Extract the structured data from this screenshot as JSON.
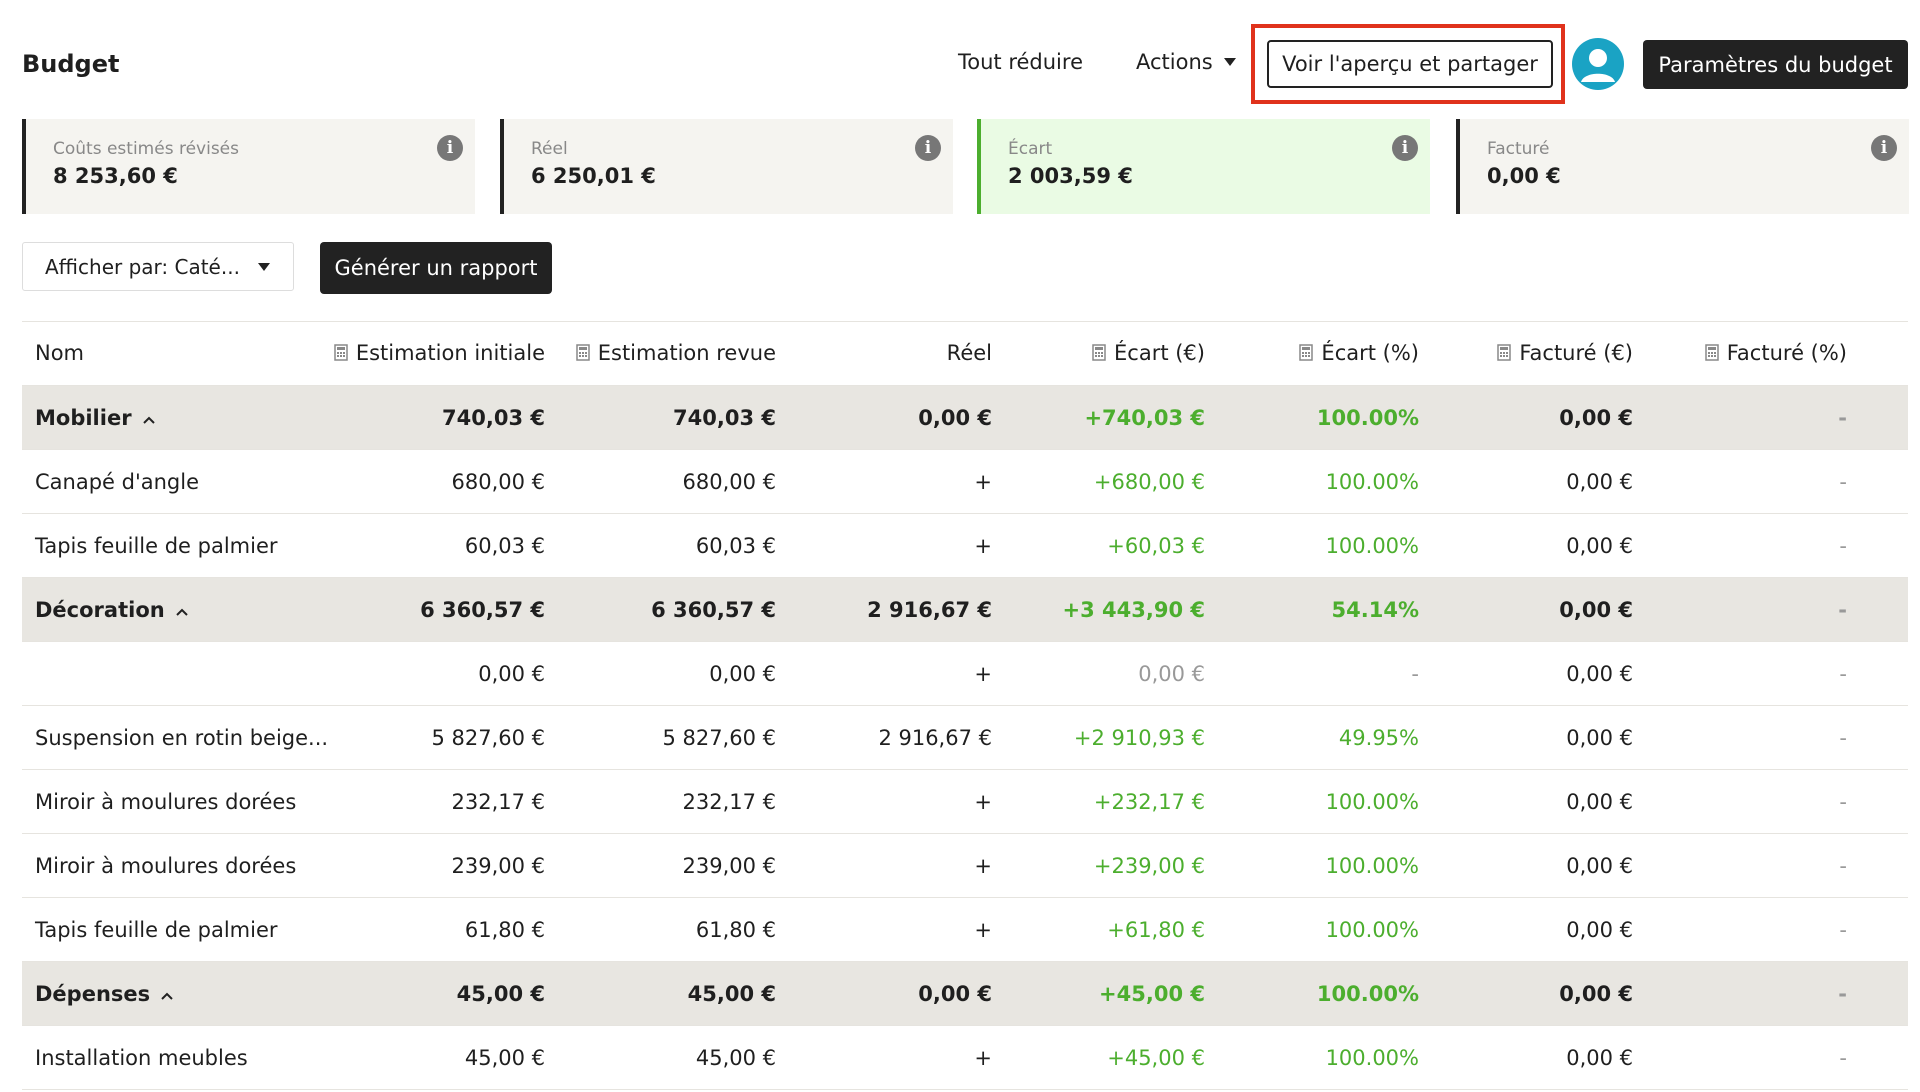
{
  "header": {
    "title": "Budget",
    "buttons": [
      "Tout réduire",
      "Actions",
      "Voir l'aperçu et partager",
      "Paramètres du budget"
    ]
  },
  "cards": [
    {
      "label": "Coûts estimés révisés",
      "value": "8 253,60 €"
    },
    {
      "label": "Réel",
      "value": "6 250,01 €"
    },
    {
      "label": "Écart",
      "value": "2 003,59 €"
    },
    {
      "label": "Facturé",
      "value": "0,00 €"
    }
  ],
  "toolbar": {
    "select": "Afficher par: Caté...",
    "button": "Générer un rapport"
  },
  "table": {
    "columns": [
      "Nom",
      "Estimation initiale",
      "Estimation revue",
      "Réel",
      "Écart (€)",
      "Écart (%)",
      "Facturé (€)",
      "Facturé (%)"
    ],
    "groups": [
      {
        "name": "Mobilier",
        "cells": [
          "740,03 €",
          "740,03 €",
          "0,00 €",
          "+740,03 €",
          "100.00%",
          "0,00 €",
          "-"
        ],
        "items": [
          {
            "name": "Canapé d'angle",
            "cells": [
              "680,00 €",
              "680,00 €",
              "+",
              "+680,00 €",
              "100.00%",
              "0,00 €",
              "-"
            ]
          },
          {
            "name": "Tapis feuille de palmier",
            "cells": [
              "60,03 €",
              "60,03 €",
              "+",
              "+60,03 €",
              "100.00%",
              "0,00 €",
              "-"
            ]
          }
        ]
      },
      {
        "name": "Décoration",
        "cells": [
          "6 360,57 €",
          "6 360,57 €",
          "2 916,67 €",
          "+3 443,90 €",
          "54.14%",
          "0,00 €",
          "-"
        ],
        "items": [
          {
            "name": null,
            "cells": [
              "0,00 €",
              "0,00 €",
              "+",
              "0,00 €",
              "-",
              "0,00 €",
              "-"
            ]
          },
          {
            "name": "Suspension en rotin beige...",
            "cells": [
              "5 827,60 €",
              "5 827,60 €",
              "2 916,67 €",
              "+2 910,93 €",
              "49.95%",
              "0,00 €",
              "-"
            ]
          },
          {
            "name": "Miroir à moulures dorées",
            "cells": [
              "232,17 €",
              "232,17 €",
              "+",
              "+232,17 €",
              "100.00%",
              "0,00 €",
              "-"
            ]
          },
          {
            "name": "Miroir à moulures dorées",
            "cells": [
              "239,00 €",
              "239,00 €",
              "+",
              "+239,00 €",
              "100.00%",
              "0,00 €",
              "-"
            ]
          },
          {
            "name": "Tapis feuille de palmier",
            "cells": [
              "61,80 €",
              "61,80 €",
              "+",
              "+61,80 €",
              "100.00%",
              "0,00 €",
              "-"
            ]
          }
        ]
      },
      {
        "name": "Dépenses",
        "cells": [
          "45,00 €",
          "45,00 €",
          "0,00 €",
          "+45,00 €",
          "100.00%",
          "0,00 €",
          "-"
        ],
        "items": [
          {
            "name": "Installation meubles",
            "cells": [
              "45,00 €",
              "45,00 €",
              "+",
              "+45,00 €",
              "100.00%",
              "0,00 €",
              "-"
            ]
          }
        ]
      }
    ]
  }
}
